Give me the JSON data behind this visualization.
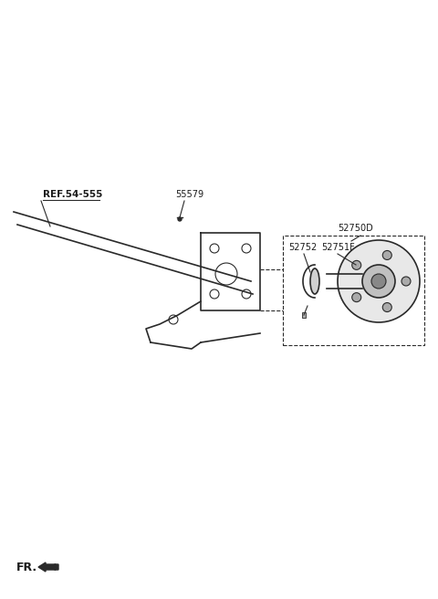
{
  "bg_color": "#ffffff",
  "line_color": "#2a2a2a",
  "label_color": "#1a1a1a",
  "fig_width": 4.8,
  "fig_height": 6.56,
  "labels": {
    "ref": "REF.54-555",
    "p55579": "55579",
    "p52750D": "52750D",
    "p52752": "52752",
    "p52751F": "52751F",
    "fr": "FR."
  }
}
